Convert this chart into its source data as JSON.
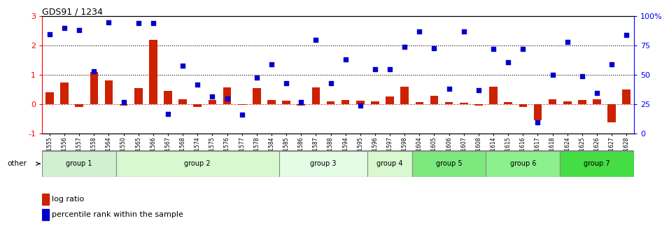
{
  "title": "GDS91 / 1234",
  "samples": [
    "GSM1555",
    "GSM1556",
    "GSM1557",
    "GSM1558",
    "GSM1564",
    "GSM1550",
    "GSM1565",
    "GSM1566",
    "GSM1567",
    "GSM1568",
    "GSM1574",
    "GSM1575",
    "GSM1576",
    "GSM1577",
    "GSM1578",
    "GSM1584",
    "GSM1585",
    "GSM1586",
    "GSM1587",
    "GSM1588",
    "GSM1594",
    "GSM1595",
    "GSM1596",
    "GSM1597",
    "GSM1598",
    "GSM1604",
    "GSM1605",
    "GSM1606",
    "GSM1607",
    "GSM1608",
    "GSM1614",
    "GSM1615",
    "GSM1616",
    "GSM1617",
    "GSM1618",
    "GSM1624",
    "GSM1625",
    "GSM1626",
    "GSM1627",
    "GSM1628"
  ],
  "log_ratio": [
    0.42,
    0.75,
    -0.08,
    1.1,
    0.82,
    -0.05,
    0.55,
    2.2,
    0.45,
    0.18,
    -0.08,
    0.15,
    0.58,
    -0.02,
    0.55,
    0.14,
    0.12,
    -0.05,
    0.58,
    0.1,
    0.14,
    0.12,
    0.1,
    0.28,
    0.6,
    0.08,
    0.3,
    0.08,
    0.05,
    -0.05,
    0.6,
    0.08,
    -0.08,
    -0.55,
    0.18,
    0.1,
    0.14,
    0.18,
    -0.6,
    0.5
  ],
  "percentile_rank": [
    85,
    90,
    88,
    53,
    95,
    27,
    94,
    94,
    17,
    58,
    42,
    32,
    30,
    16,
    48,
    59,
    43,
    27,
    80,
    43,
    63,
    24,
    55,
    55,
    74,
    87,
    73,
    38,
    87,
    37,
    72,
    61,
    72,
    10,
    50,
    78,
    49,
    35,
    59,
    84
  ],
  "groups": [
    {
      "label": "group 1",
      "start": 0,
      "end": 5,
      "color": "#d0f0d0"
    },
    {
      "label": "group 2",
      "start": 5,
      "end": 16,
      "color": "#d8f8d0"
    },
    {
      "label": "group 3",
      "start": 16,
      "end": 22,
      "color": "#e4fce4"
    },
    {
      "label": "group 4",
      "start": 22,
      "end": 25,
      "color": "#d8f8d0"
    },
    {
      "label": "group 5",
      "start": 25,
      "end": 30,
      "color": "#7de87d"
    },
    {
      "label": "group 6",
      "start": 30,
      "end": 35,
      "color": "#8cf08c"
    },
    {
      "label": "group 7",
      "start": 35,
      "end": 40,
      "color": "#44dd44"
    }
  ],
  "bar_color": "#cc2200",
  "scatter_color": "#0000cc",
  "ylim_left": [
    -1,
    3
  ],
  "ylim_right": [
    0,
    100
  ],
  "yticks_left": [
    -1,
    0,
    1,
    2,
    3
  ],
  "yticks_right": [
    0,
    25,
    50,
    75,
    100
  ],
  "ytick_labels_right": [
    "0",
    "25",
    "50",
    "75",
    "100%"
  ],
  "hlines": [
    1.0,
    2.0
  ],
  "zero_line": 0.0,
  "legend_items": [
    {
      "label": "log ratio",
      "color": "#cc2200"
    },
    {
      "label": "percentile rank within the sample",
      "color": "#0000cc"
    }
  ],
  "other_label": "other",
  "dashed_zero_color": "#cc0000"
}
